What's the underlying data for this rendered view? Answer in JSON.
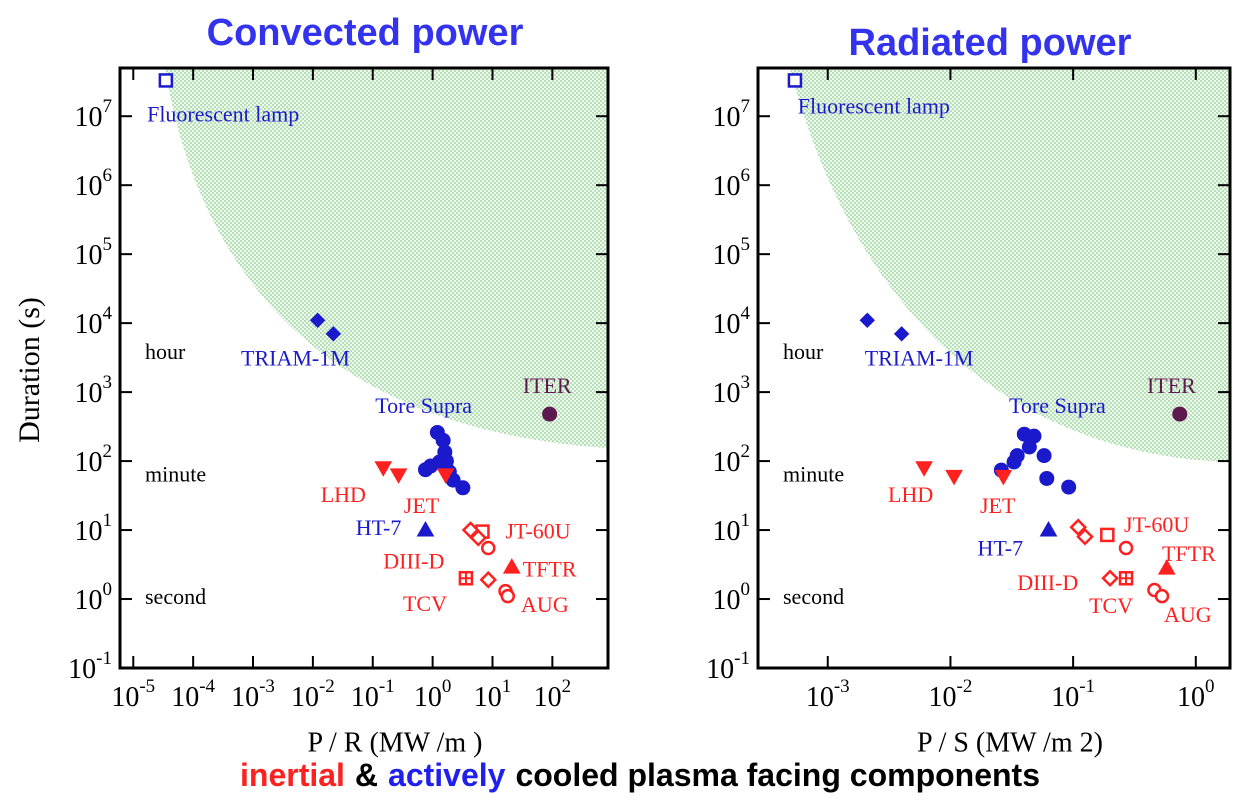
{
  "chart_data": [
    {
      "type": "scatter",
      "title": "Convected power",
      "title_color": "#3333ee",
      "xlabel": "P / R (MW /m )",
      "ylabel": "Duration (s)",
      "xscale": "log",
      "yscale": "log",
      "xlim": [
        6e-06,
        850
      ],
      "ylim": [
        0.1,
        50000000
      ],
      "xticks": [
        {
          "value": 1e-05,
          "label": "10",
          "exp": "-5"
        },
        {
          "value": 0.0001,
          "label": "10",
          "exp": "-4"
        },
        {
          "value": 0.001,
          "label": "10",
          "exp": "-3"
        },
        {
          "value": 0.01,
          "label": "10",
          "exp": "-2"
        },
        {
          "value": 0.1,
          "label": "10",
          "exp": "-1"
        },
        {
          "value": 1,
          "label": "10",
          "exp": "0"
        },
        {
          "value": 10,
          "label": "10",
          "exp": "1"
        },
        {
          "value": 100,
          "label": "10",
          "exp": "2"
        }
      ],
      "yticks": [
        {
          "value": 0.1,
          "label": "10",
          "exp": "-1"
        },
        {
          "value": 1,
          "label": "10",
          "exp": "0"
        },
        {
          "value": 10,
          "label": "10",
          "exp": "1"
        },
        {
          "value": 100,
          "label": "10",
          "exp": "2"
        },
        {
          "value": 1000,
          "label": "10",
          "exp": "3"
        },
        {
          "value": 10000,
          "label": "10",
          "exp": "4"
        },
        {
          "value": 100000,
          "label": "10",
          "exp": "5"
        },
        {
          "value": 1000000,
          "label": "10",
          "exp": "6"
        },
        {
          "value": 10000000,
          "label": "10",
          "exp": "7"
        }
      ],
      "annotations": [
        {
          "text": "hour",
          "y": 3600
        },
        {
          "text": "minute",
          "y": 60
        },
        {
          "text": "second",
          "y": 1
        }
      ],
      "series": [
        {
          "name": "Fluorescent lamp",
          "color": "#1a1acc",
          "marker": "square-open",
          "x": [
            3.5e-05
          ],
          "values": [
            33000000
          ],
          "label_at": [
            1.7e-05,
            10000000
          ]
        },
        {
          "name": "TRIAM-1M",
          "color": "#1a1acc",
          "marker": "diamond",
          "x": [
            0.012,
            0.022
          ],
          "values": [
            11000,
            7000
          ],
          "label_at": [
            0.00063,
            2900
          ]
        },
        {
          "name": "Tore Supra",
          "color": "#1a1acc",
          "marker": "circle",
          "x": [
            1.2,
            1.5,
            1.6,
            1.7,
            0.93,
            1.3,
            0.76,
            1.9,
            2.2,
            3.2
          ],
          "values": [
            260,
            200,
            135,
            100,
            85,
            97,
            75,
            70,
            53,
            41
          ],
          "label_at": [
            0.11,
            590
          ]
        },
        {
          "name": "HT-7",
          "color": "#1a1acc",
          "marker": "triangle-up",
          "x": [
            0.76
          ],
          "values": [
            10
          ],
          "label_at": [
            0.052,
            10
          ]
        },
        {
          "name": "ITER",
          "color": "#5c1a4f",
          "marker": "circle",
          "x": [
            90
          ],
          "values": [
            480
          ],
          "label_at": [
            32,
            1150
          ]
        },
        {
          "name": "LHD",
          "color": "#ff2020",
          "marker": "triangle-down",
          "x": [
            0.15,
            0.27
          ],
          "values": [
            80,
            63
          ],
          "label_at": [
            0.0135,
            30
          ]
        },
        {
          "name": "JET",
          "color": "#ff2020",
          "marker": "triangle-down",
          "x": [
            1.65
          ],
          "values": [
            63
          ],
          "label_at": [
            0.33,
            21
          ]
        },
        {
          "name": "JT-60U",
          "color": "#ff2020",
          "marker": "square-open",
          "x": [
            6.8
          ],
          "values": [
            9.5
          ],
          "label_at": [
            16.5,
            9
          ]
        },
        {
          "name": "DIII-D",
          "color": "#ff2020",
          "marker": "diamond-open",
          "x": [
            4.3,
            5.8,
            8.5
          ],
          "values": [
            10,
            7.7,
            1.9
          ],
          "label_at": [
            0.15,
            3.3
          ]
        },
        {
          "name": "TFTR",
          "color": "#ff2020",
          "marker": "triangle-up",
          "x": [
            21
          ],
          "values": [
            2.9
          ],
          "label_at": [
            32,
            2.5
          ]
        },
        {
          "name": "TCV",
          "color": "#ff2020",
          "marker": "square-cross",
          "x": [
            3.6
          ],
          "values": [
            2.0
          ],
          "label_at": [
            0.32,
            0.8
          ]
        },
        {
          "name": "AUG",
          "color": "#ff2020",
          "marker": "circle-open",
          "x": [
            8.5,
            16.5,
            18
          ],
          "values": [
            5.5,
            1.3,
            1.1
          ],
          "label_at": [
            30,
            0.77
          ]
        }
      ]
    },
    {
      "type": "scatter",
      "title": "Radiated power",
      "title_color": "#3333ee",
      "xlabel": "P / S (MW /m 2)",
      "xscale": "log",
      "yscale": "log",
      "xlim": [
        0.00027,
        1.9
      ],
      "ylim": [
        0.1,
        50000000
      ],
      "xticks": [
        {
          "value": 0.001,
          "label": "10",
          "exp": "-3"
        },
        {
          "value": 0.01,
          "label": "10",
          "exp": "-2"
        },
        {
          "value": 0.1,
          "label": "10",
          "exp": "-1"
        },
        {
          "value": 1,
          "label": "10",
          "exp": "0"
        }
      ],
      "yticks": [
        {
          "value": 0.1,
          "label": "10",
          "exp": "-1"
        },
        {
          "value": 1,
          "label": "10",
          "exp": "0"
        },
        {
          "value": 10,
          "label": "10",
          "exp": "1"
        },
        {
          "value": 100,
          "label": "10",
          "exp": "2"
        },
        {
          "value": 1000,
          "label": "10",
          "exp": "3"
        },
        {
          "value": 10000,
          "label": "10",
          "exp": "4"
        },
        {
          "value": 100000,
          "label": "10",
          "exp": "5"
        },
        {
          "value": 1000000,
          "label": "10",
          "exp": "6"
        },
        {
          "value": 10000000,
          "label": "10",
          "exp": "7"
        }
      ],
      "annotations": [
        {
          "text": "hour",
          "y": 3600
        },
        {
          "text": "minute",
          "y": 60
        },
        {
          "text": "second",
          "y": 1
        }
      ],
      "series": [
        {
          "name": "Fluorescent lamp",
          "color": "#1a1acc",
          "marker": "square-open",
          "x": [
            0.00054
          ],
          "values": [
            33000000
          ],
          "label_at": [
            0.00057,
            13000000
          ]
        },
        {
          "name": "TRIAM-1M",
          "color": "#1a1acc",
          "marker": "diamond",
          "x": [
            0.0021,
            0.004
          ],
          "values": [
            11000,
            7000
          ],
          "label_at": [
            0.002,
            2900
          ]
        },
        {
          "name": "Tore Supra",
          "color": "#1a1acc",
          "marker": "circle",
          "x": [
            0.04,
            0.048,
            0.044,
            0.035,
            0.058,
            0.033,
            0.026,
            0.061,
            0.092
          ],
          "values": [
            245,
            230,
            160,
            120,
            120,
            97,
            74,
            56,
            42
          ],
          "label_at": [
            0.03,
            590
          ]
        },
        {
          "name": "HT-7",
          "color": "#1a1acc",
          "marker": "triangle-up",
          "x": [
            0.063
          ],
          "values": [
            10
          ],
          "label_at": [
            0.0166,
            5.1
          ]
        },
        {
          "name": "ITER",
          "color": "#5c1a4f",
          "marker": "circle",
          "x": [
            0.74
          ],
          "values": [
            480
          ],
          "label_at": [
            0.4,
            1150
          ]
        },
        {
          "name": "LHD",
          "color": "#ff2020",
          "marker": "triangle-down",
          "x": [
            0.0061,
            0.0107
          ],
          "values": [
            80,
            60
          ],
          "label_at": [
            0.0031,
            30
          ]
        },
        {
          "name": "JET",
          "color": "#ff2020",
          "marker": "triangle-down",
          "x": [
            0.027
          ],
          "values": [
            60
          ],
          "label_at": [
            0.0174,
            21
          ]
        },
        {
          "name": "JT-60U",
          "color": "#ff2020",
          "marker": "square-open",
          "x": [
            0.19
          ],
          "values": [
            8.5
          ],
          "label_at": [
            0.26,
            11
          ]
        },
        {
          "name": "DIII-D",
          "color": "#ff2020",
          "marker": "diamond-open",
          "x": [
            0.11,
            0.125,
            0.2
          ],
          "values": [
            11,
            8,
            2.0
          ],
          "label_at": [
            0.035,
            1.6
          ]
        },
        {
          "name": "TFTR",
          "color": "#ff2020",
          "marker": "triangle-up",
          "x": [
            0.58
          ],
          "values": [
            2.8
          ],
          "label_at": [
            0.53,
            4.2
          ]
        },
        {
          "name": "TCV",
          "color": "#ff2020",
          "marker": "square-cross",
          "x": [
            0.27
          ],
          "values": [
            2.0
          ],
          "label_at": [
            0.135,
            0.74
          ]
        },
        {
          "name": "AUG",
          "color": "#ff2020",
          "marker": "circle-open",
          "x": [
            0.27,
            0.46,
            0.53
          ],
          "values": [
            5.5,
            1.35,
            1.1
          ],
          "label_at": [
            0.55,
            0.55
          ]
        }
      ]
    }
  ],
  "caption": [
    {
      "text": "inertial",
      "color": "#ff2020"
    },
    {
      "text": "&",
      "color": "#000000"
    },
    {
      "text": "actively",
      "color": "#2020ee"
    },
    {
      "text": "cooled plasma facing components",
      "color": "#000000"
    }
  ]
}
